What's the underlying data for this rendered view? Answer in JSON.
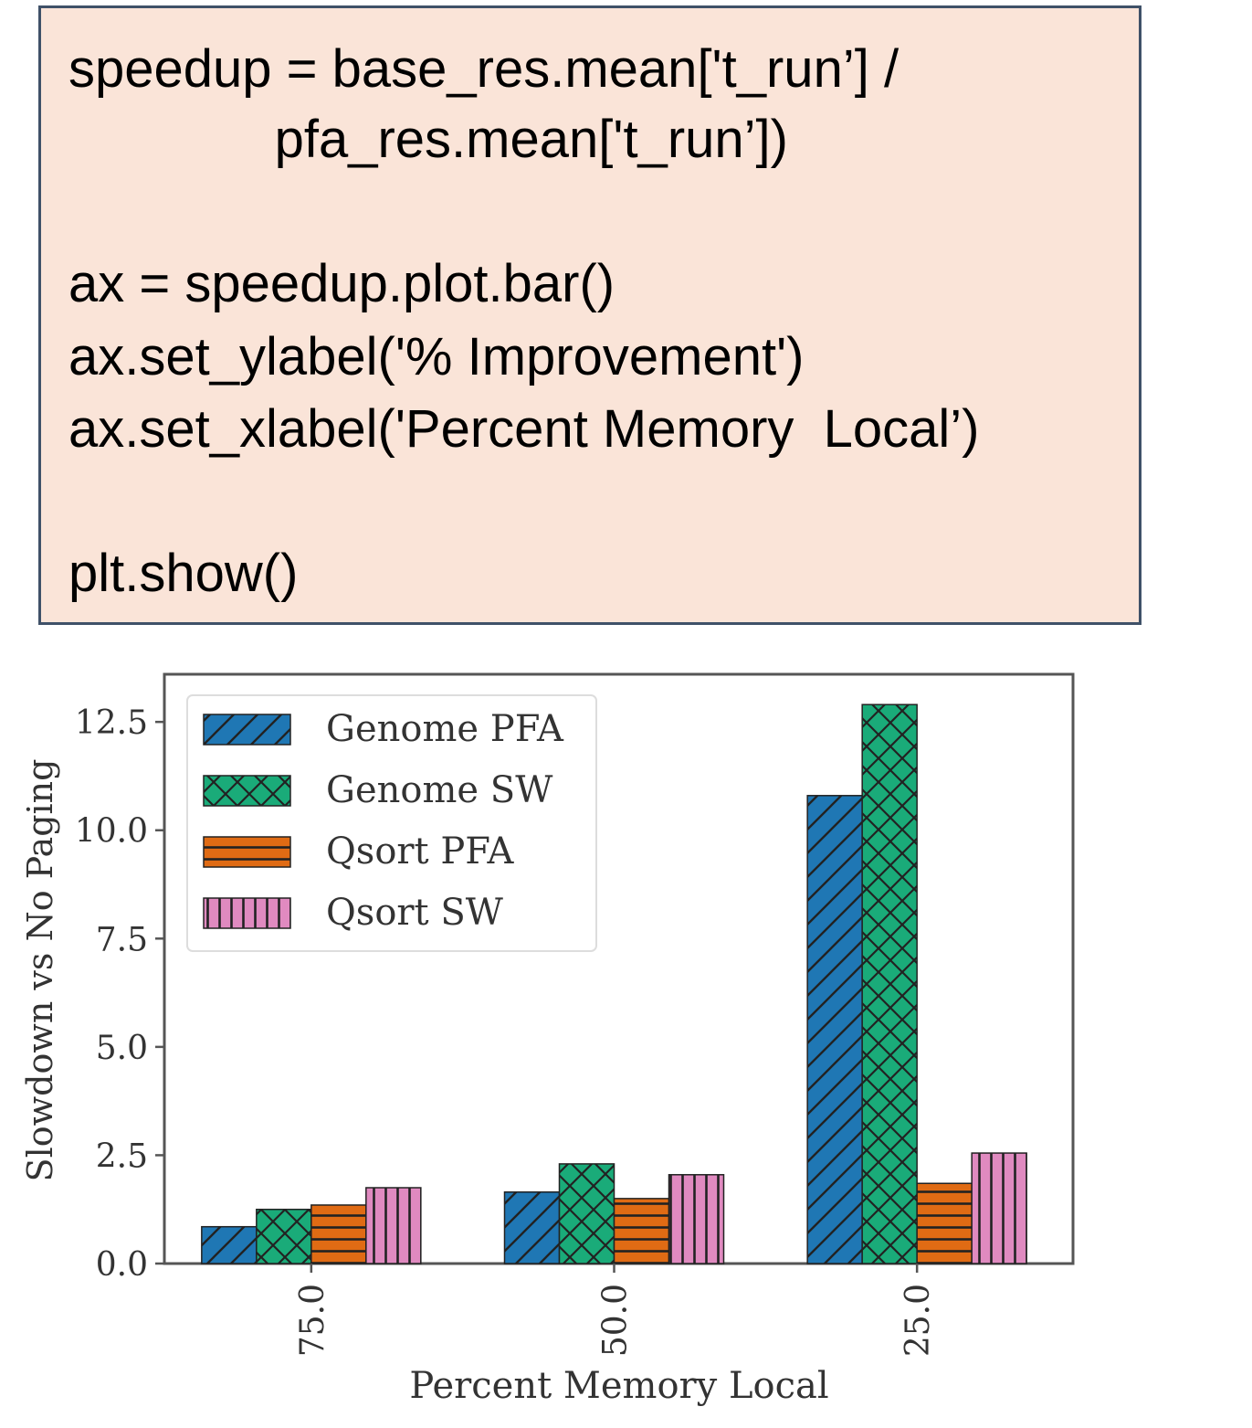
{
  "code": {
    "lines": [
      "speedup = base_res.mean['t_run’] /",
      "              pfa_res.mean['t_run’])",
      "",
      "ax = speedup.plot.bar()",
      "ax.set_ylabel('% Improvement')",
      "ax.set_xlabel('Percent Memory  Local’)",
      "",
      "plt.show()"
    ]
  },
  "chart_data": {
    "type": "bar",
    "categories": [
      "75.0",
      "50.0",
      "25.0"
    ],
    "series": [
      {
        "name": "Genome PFA",
        "values": [
          0.85,
          1.65,
          10.8
        ],
        "color": "#1f77b4",
        "hatch": "diagonal"
      },
      {
        "name": "Genome SW",
        "values": [
          1.25,
          2.3,
          12.9
        ],
        "color": "#1aab79",
        "hatch": "cross"
      },
      {
        "name": "Qsort PFA",
        "values": [
          1.35,
          1.5,
          1.85
        ],
        "color": "#e06b14",
        "hatch": "horizontal"
      },
      {
        "name": "Qsort SW",
        "values": [
          1.75,
          2.05,
          2.55
        ],
        "color": "#e08ac0",
        "hatch": "vertical"
      }
    ],
    "title": "",
    "xlabel": "Percent Memory Local",
    "ylabel": "Slowdown vs No Paging",
    "ylim": [
      0,
      13.6
    ],
    "yticks": [
      "0.0",
      "2.5",
      "5.0",
      "7.5",
      "10.0",
      "12.5"
    ],
    "legend_placement": "top-left",
    "grid": false
  }
}
